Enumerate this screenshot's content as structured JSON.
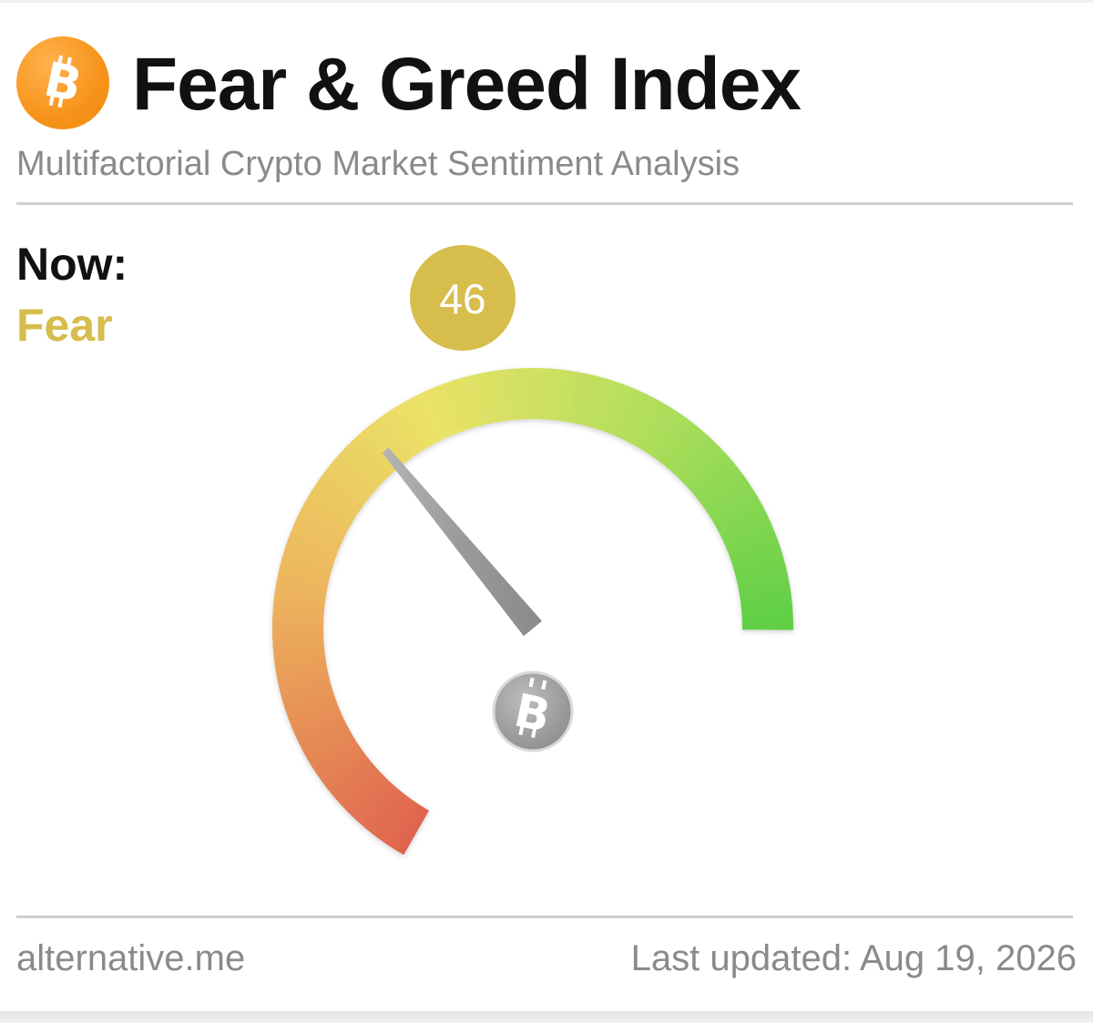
{
  "header": {
    "title": "Fear & Greed Index",
    "subtitle": "Multifactorial Crypto Market Sentiment Analysis",
    "logo_icon": "bitcoin-icon"
  },
  "now": {
    "label": "Now:",
    "classification": "Fear",
    "value": "46"
  },
  "gauge": {
    "value_fraction": 0.46,
    "needle_icon": "bitcoin-icon"
  },
  "footer": {
    "source": "alternative.me",
    "last_updated": "Last updated: Aug 19, 2026"
  },
  "colors": {
    "brand": "#f7931a",
    "fear_accent": "#d6bd4c",
    "gauge_low": "#e0644f",
    "gauge_mid": "#ebe267",
    "gauge_high": "#5fcf47",
    "needle": "#9a9a9a"
  }
}
